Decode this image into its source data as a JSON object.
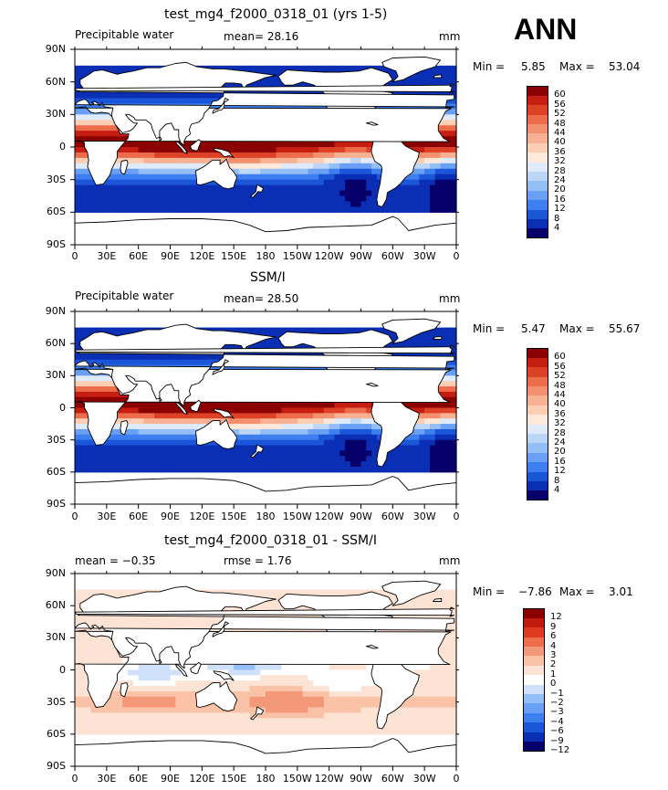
{
  "season": "ANN",
  "colors": {
    "abs_palette": [
      "#08006a",
      "#0a2fb4",
      "#1b55d8",
      "#3d7ef0",
      "#699ff4",
      "#94bff6",
      "#bcd6f8",
      "#dfeafb",
      "#fde8da",
      "#fccfb4",
      "#f8b293",
      "#f3916f",
      "#ec6c4c",
      "#de4226",
      "#c61e10",
      "#8b0000"
    ],
    "diff_palette": [
      "#08006a",
      "#0a2fb4",
      "#1b55d8",
      "#3d7ef0",
      "#699ff4",
      "#94bff6",
      "#cfe0fa",
      "#ffffff",
      "#fde3d4",
      "#fac3a8",
      "#f4987a",
      "#ec6c4c",
      "#de3a22",
      "#c01a0e",
      "#8b0000"
    ],
    "land": "#ffffff",
    "outline": "#000000"
  },
  "icon_name": "world-map-continents",
  "axis": {
    "lat_labels": [
      "90N",
      "60N",
      "30N",
      "0",
      "30S",
      "60S",
      "90S"
    ],
    "lon_labels": [
      "0",
      "30E",
      "60E",
      "90E",
      "120E",
      "150E",
      "180",
      "150W",
      "120W",
      "90W",
      "60W",
      "30W",
      "0"
    ]
  },
  "panels": [
    {
      "title": "test_mg4_f2000_0318_01 (yrs 1-5)",
      "left_label": "Precipitable water",
      "center_label": "mean=  28.16",
      "right_label": "mm",
      "min_label": "Min =",
      "min_value": "5.85",
      "max_label": "Max =",
      "max_value": "53.04",
      "colorbar": [
        "60",
        "56",
        "52",
        "48",
        "44",
        "40",
        "36",
        "32",
        "28",
        "24",
        "20",
        "16",
        "12",
        "8",
        "4"
      ]
    },
    {
      "title": "SSM/I",
      "left_label": "Precipitable water",
      "center_label": "mean=  28.50",
      "right_label": "mm",
      "min_label": "Min =",
      "min_value": "5.47",
      "max_label": "Max =",
      "max_value": "55.67",
      "colorbar": [
        "60",
        "56",
        "52",
        "48",
        "44",
        "40",
        "36",
        "32",
        "28",
        "24",
        "20",
        "16",
        "12",
        "8",
        "4"
      ]
    },
    {
      "title": "test_mg4_f2000_0318_01 - SSM/I",
      "left_label": "mean =  −0.35",
      "center_label": "rmse =   1.76",
      "right_label": "mm",
      "min_label": "Min =",
      "min_value": "−7.86",
      "max_label": "Max =",
      "max_value": "3.01",
      "colorbar": [
        "12",
        "9",
        "6",
        "4",
        "3",
        "2",
        "1",
        "0",
        "−1",
        "−2",
        "−3",
        "−4",
        "−6",
        "−9",
        "−12"
      ]
    }
  ]
}
